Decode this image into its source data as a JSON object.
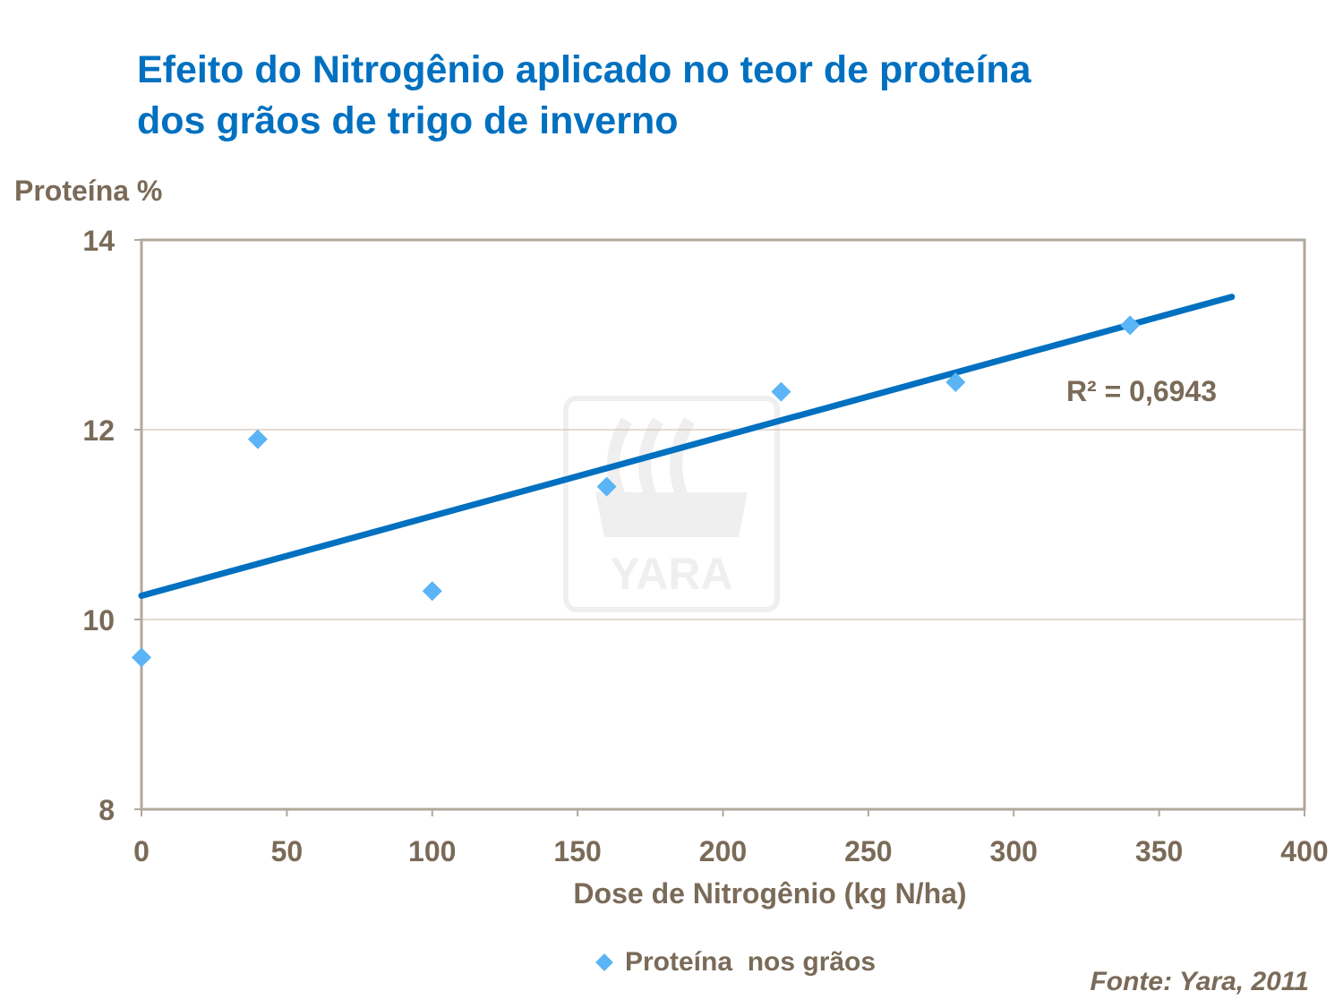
{
  "chart_data": {
    "type": "scatter",
    "title": "Efeito do Nitrogênio aplicado no teor de proteína dos grãos de trigo de inverno",
    "title_lines": [
      "Efeito do Nitrogênio aplicado no teor de proteína",
      "dos grãos de trigo de inverno"
    ],
    "xlabel": "Dose de Nitrogênio (kg N/ha)",
    "ylabel": "Proteína %",
    "xlim": [
      0,
      400
    ],
    "ylim": [
      8,
      14
    ],
    "xticks": [
      "0",
      "50",
      "100",
      "150",
      "200",
      "250",
      "300",
      "350",
      "400"
    ],
    "yticks": [
      "8",
      "10",
      "12",
      "14"
    ],
    "grid": "horizontal",
    "legend_position": "bottom",
    "series": [
      {
        "name": "Proteína  nos grãos",
        "marker": "diamond",
        "color": "#5ab4f5",
        "x": [
          0,
          40,
          100,
          160,
          220,
          280,
          340
        ],
        "y": [
          9.6,
          11.9,
          10.3,
          11.4,
          12.4,
          12.5,
          13.1
        ]
      }
    ],
    "trendline": {
      "type": "linear",
      "x": [
        0,
        375
      ],
      "y": [
        10.25,
        13.4
      ],
      "color": "#0070c0",
      "r2_label": "R² = 0,6943"
    },
    "watermark": "YARA"
  },
  "source": "Fonte: Yara, 2011",
  "colors": {
    "title": "#0070c0",
    "text": "#7a6a58",
    "axis": "#b0a89c"
  }
}
